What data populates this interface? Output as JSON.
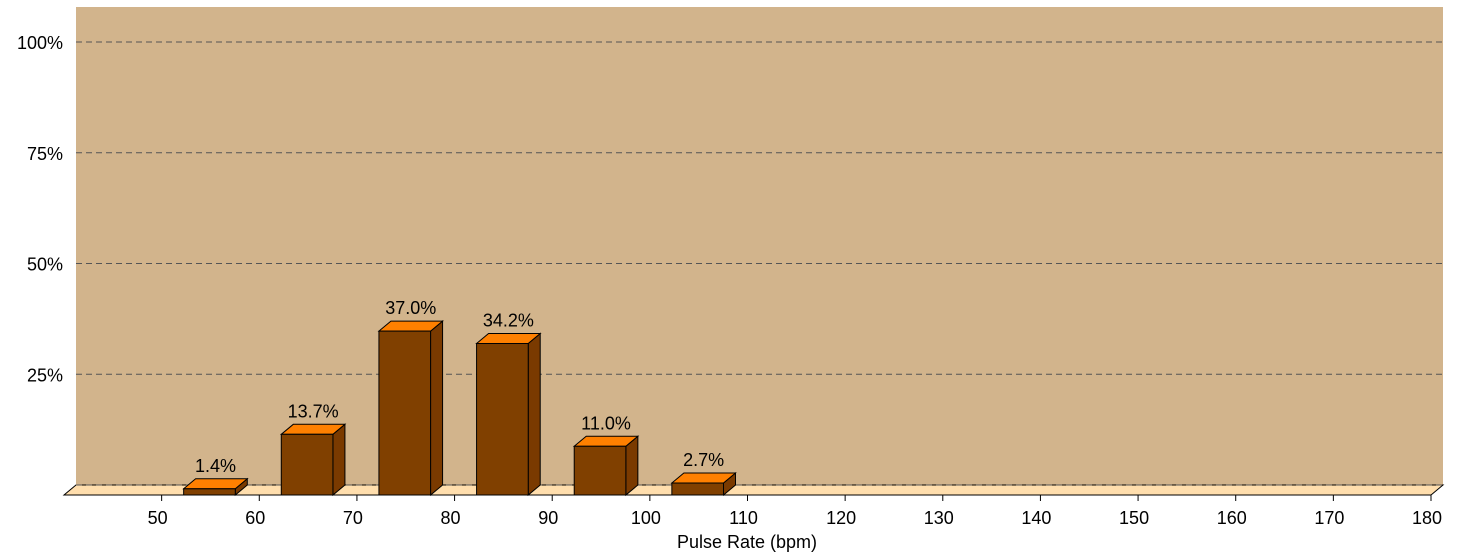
{
  "chart_data": {
    "type": "bar",
    "xlabel": "Pulse Rate (bpm)",
    "ylabel": "",
    "x_ticks": [
      "50",
      "60",
      "70",
      "80",
      "90",
      "100",
      "110",
      "120",
      "130",
      "140",
      "150",
      "160",
      "170",
      "180"
    ],
    "y_ticks": [
      "25%",
      "50%",
      "75%",
      "100%"
    ],
    "ylim": [
      0,
      100
    ],
    "xlim": [
      40,
      180
    ],
    "grid": true,
    "bins": [
      {
        "from": 50,
        "to": 60,
        "value": 1.4,
        "label": "1.4%"
      },
      {
        "from": 60,
        "to": 70,
        "value": 13.7,
        "label": "13.7%"
      },
      {
        "from": 70,
        "to": 80,
        "value": 37.0,
        "label": "37.0%"
      },
      {
        "from": 80,
        "to": 90,
        "value": 34.2,
        "label": "34.2%"
      },
      {
        "from": 90,
        "to": 100,
        "value": 11.0,
        "label": "11.0%"
      },
      {
        "from": 100,
        "to": 110,
        "value": 2.7,
        "label": "2.7%"
      }
    ],
    "colors": {
      "plot_background": "#D2B48C",
      "floor": "#FFDEAD",
      "bar_front": "#804000",
      "bar_top": "#FF8000",
      "bar_side": "#7A3A00",
      "grid": "#555555"
    }
  }
}
